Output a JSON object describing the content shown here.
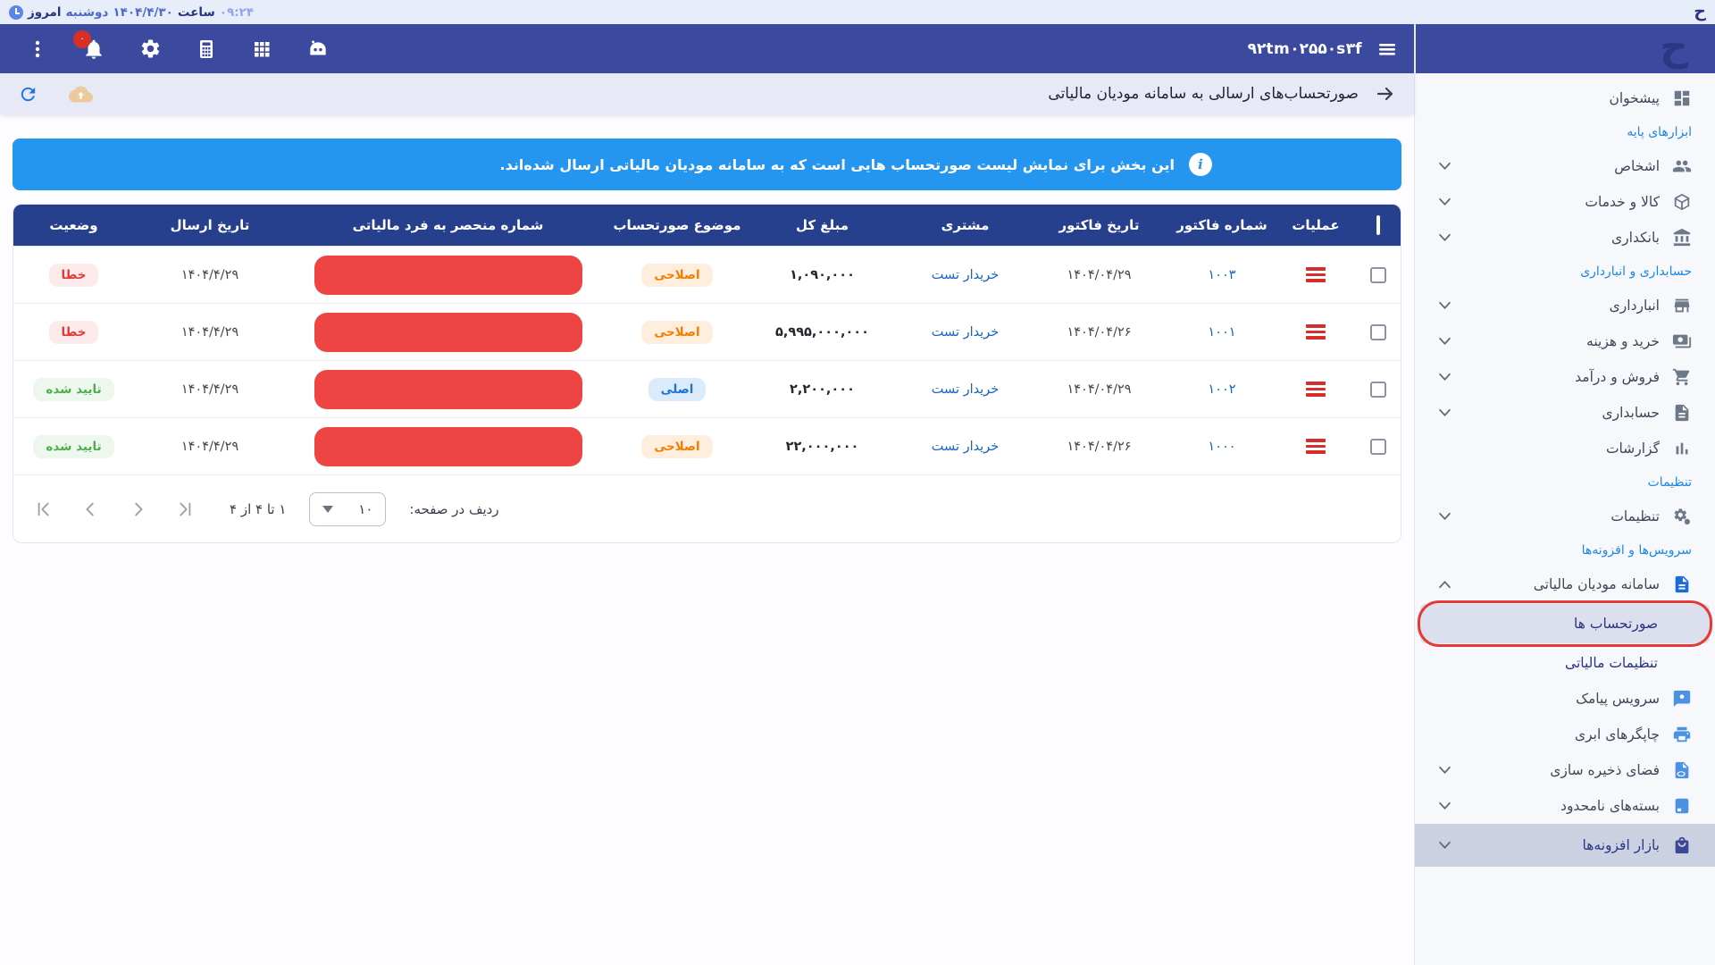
{
  "status_bar": {
    "today_label": "امروز",
    "weekday": "دوشنبه",
    "date": "۱۴۰۴/۴/۳۰",
    "time_label": "ساعت",
    "time": "۰۹:۲۴",
    "logo_glyph": "ح"
  },
  "navbar": {
    "business_code": "۹۲tm۰۲۵۵۰s۳f",
    "bell_badge": "۰",
    "logo_glyph": "ح",
    "icon_names": [
      "robot-icon",
      "apps-grid-icon",
      "calculator-icon",
      "settings-icon",
      "notifications-bell-icon",
      "kebab-menu-icon"
    ]
  },
  "toolbar": {
    "title": "صورتحساب‌های ارسالی به سامانه مودیان مالیاتی"
  },
  "banner": {
    "text": "این بخش برای نمایش لیست صورتحساب هایی است که به سامانه مودیان مالیاتی ارسال شده‌اند.",
    "icon": "i",
    "color": "#2596f0"
  },
  "table": {
    "headers": [
      "عملیات",
      "شماره فاکتور",
      "تاریخ فاکتور",
      "مشتری",
      "مبلغ کل",
      "موضوع صورتحساب",
      "شماره منحصر به فرد مالیاتی",
      "تاریخ ارسال",
      "وضعیت"
    ],
    "rows": [
      {
        "invoice_no": "۱۰۰۳",
        "invoice_date": "۱۴۰۴/۰۴/۲۹",
        "customer": "خریدار تست",
        "total": "۱,۰۹۰,۰۰۰",
        "subject": "اصلاحی",
        "subject_kind": "amended",
        "tax_id_redacted": true,
        "send_date": "۱۴۰۴/۴/۲۹",
        "status": "خطا",
        "status_kind": "error"
      },
      {
        "invoice_no": "۱۰۰۱",
        "invoice_date": "۱۴۰۴/۰۴/۲۶",
        "customer": "خریدار تست",
        "total": "۵,۹۹۵,۰۰۰,۰۰۰",
        "subject": "اصلاحی",
        "subject_kind": "amended",
        "tax_id_redacted": true,
        "send_date": "۱۴۰۴/۴/۲۹",
        "status": "خطا",
        "status_kind": "error"
      },
      {
        "invoice_no": "۱۰۰۲",
        "invoice_date": "۱۴۰۴/۰۴/۲۹",
        "customer": "خریدار تست",
        "total": "۲,۲۰۰,۰۰۰",
        "subject": "اصلی",
        "subject_kind": "original",
        "tax_id_redacted": true,
        "send_date": "۱۴۰۴/۴/۲۹",
        "status": "تایید شده",
        "status_kind": "approved"
      },
      {
        "invoice_no": "۱۰۰۰",
        "invoice_date": "۱۴۰۴/۰۴/۲۶",
        "customer": "خریدار تست",
        "total": "۲۲,۰۰۰,۰۰۰",
        "subject": "اصلاحی",
        "subject_kind": "amended",
        "tax_id_redacted": true,
        "send_date": "۱۴۰۴/۴/۲۹",
        "status": "تایید شده",
        "status_kind": "approved"
      }
    ]
  },
  "pagination": {
    "rows_per_page_label": "ردیف در صفحه:",
    "page_size": "۱۰",
    "range": "۱ تا ۴ از ۴"
  },
  "sidebar": {
    "items": [
      {
        "type": "item",
        "label": "پیشخوان",
        "icon": "dashboard"
      },
      {
        "type": "section",
        "label": "ابزارهای پایه"
      },
      {
        "type": "item",
        "label": "اشخاص",
        "icon": "people",
        "chevron": "down"
      },
      {
        "type": "item",
        "label": "کالا و خدمات",
        "icon": "cube",
        "chevron": "down"
      },
      {
        "type": "item",
        "label": "بانکداری",
        "icon": "bank",
        "chevron": "down"
      },
      {
        "type": "section",
        "label": "حسابداری و انبارداری"
      },
      {
        "type": "item",
        "label": "انبارداری",
        "icon": "store",
        "chevron": "down"
      },
      {
        "type": "item",
        "label": "خرید و هزینه",
        "icon": "payments",
        "chevron": "down"
      },
      {
        "type": "item",
        "label": "فروش و درآمد",
        "icon": "cart",
        "chevron": "down"
      },
      {
        "type": "item",
        "label": "حسابداری",
        "icon": "doc",
        "chevron": "down"
      },
      {
        "type": "item",
        "label": "گزارشات",
        "icon": "chart"
      },
      {
        "type": "section",
        "label": "تنظیمات"
      },
      {
        "type": "item",
        "label": "تنظیمات",
        "icon": "gears",
        "chevron": "down"
      },
      {
        "type": "section",
        "label": "سرویس‌ها و افزونه‌ها"
      },
      {
        "type": "item",
        "label": "سامانه مودیان مالیاتی",
        "icon": "doc",
        "icon_color": "brightblue",
        "chevron": "up"
      },
      {
        "type": "subitem",
        "label": "صورتحساب ها",
        "selected": true,
        "annotated": true
      },
      {
        "type": "subitem",
        "label": "تنظیمات مالیاتی"
      },
      {
        "type": "item",
        "label": "سرویس پیامک",
        "icon": "sms",
        "icon_color": "blue"
      },
      {
        "type": "item",
        "label": "چاپگرهای ابری",
        "icon": "printer",
        "icon_color": "blue"
      },
      {
        "type": "item",
        "label": "فضای ذخیره سازی",
        "icon": "filecloud",
        "icon_color": "blue",
        "chevron": "down"
      },
      {
        "type": "item",
        "label": "بسته‌های نامحدود",
        "icon": "pack",
        "icon_color": "blue",
        "chevron": "down"
      },
      {
        "type": "item",
        "label": "بازار افزونه‌ها",
        "icon": "bag",
        "icon_color": "indigo",
        "chevron": "down",
        "highlighted": true
      }
    ]
  }
}
